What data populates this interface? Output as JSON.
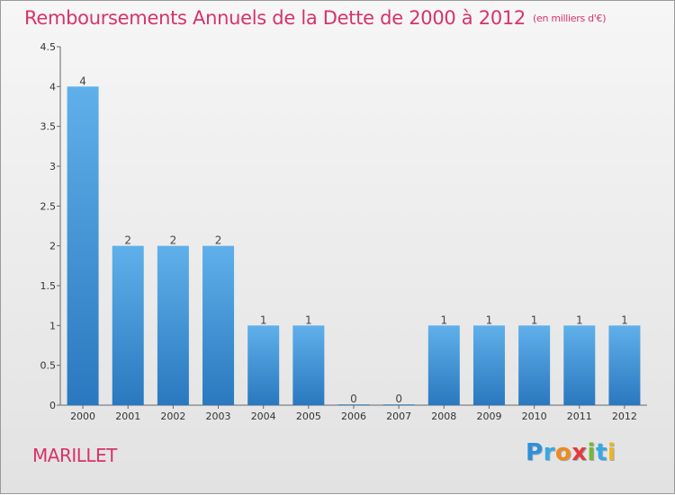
{
  "chart_data": {
    "type": "bar",
    "title": "Remboursements Annuels de la Dette de 2000 à 2012",
    "unit": "(en milliers d'€)",
    "categories": [
      "2000",
      "2001",
      "2002",
      "2003",
      "2004",
      "2005",
      "2006",
      "2007",
      "2008",
      "2009",
      "2010",
      "2011",
      "2012"
    ],
    "values": [
      4,
      2,
      2,
      2,
      1,
      1,
      0,
      0,
      1,
      1,
      1,
      1,
      1
    ],
    "data_labels": [
      "4",
      "2",
      "2",
      "2",
      "1",
      "1",
      "0",
      "0",
      "1",
      "1",
      "1",
      "1",
      "1"
    ],
    "ylim": [
      0,
      4.5
    ],
    "yticks": [
      0,
      0.5,
      1,
      1.5,
      2,
      2.5,
      3,
      3.5,
      4,
      4.5
    ],
    "ytick_labels": [
      "0",
      "0.5",
      "1",
      "1.5",
      "2",
      "2.5",
      "3",
      "3.5",
      "4",
      "4.5"
    ],
    "xlabel": "",
    "ylabel": "",
    "grid": false,
    "bar_color": "#3a8fd4"
  },
  "commune": "MARILLET",
  "logo_letters": [
    "P",
    "r",
    "o",
    "x",
    "i",
    "t",
    "i"
  ]
}
